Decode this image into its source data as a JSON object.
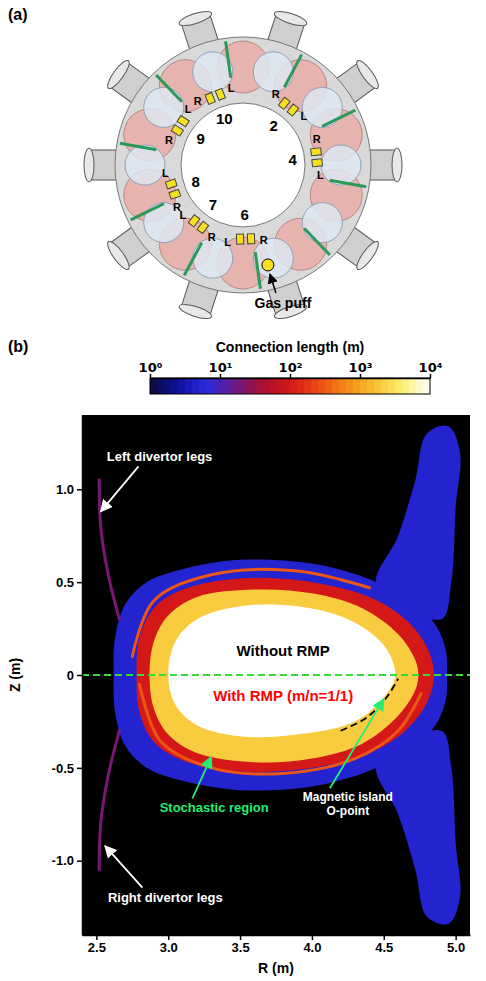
{
  "panel_a": {
    "label": "(a)",
    "sections": [
      {
        "number": "10",
        "left": "L",
        "right": "R"
      },
      {
        "number": "2",
        "left": "L",
        "right": "R"
      },
      {
        "number": "4",
        "left": "L",
        "right": "R"
      },
      {
        "number": "6",
        "left": "L",
        "right": "R"
      },
      {
        "number": "7",
        "left": "L",
        "right": "R"
      },
      {
        "number": "8",
        "left": "L",
        "right": "R"
      },
      {
        "number": "9",
        "left": "L",
        "right": "R"
      }
    ],
    "gas_puff": "Gas puff"
  },
  "chart_data": {
    "type": "contour",
    "label": "(b)",
    "xlabel": "R (m)",
    "ylabel": "Z (m)",
    "xlim": [
      2.4,
      5.1
    ],
    "ylim": [
      -1.4,
      1.4
    ],
    "xticks": [
      2.5,
      {
        "value": 3,
        "label": "3.0"
      },
      3.5,
      {
        "value": 4,
        "label": "4.0"
      },
      4.5,
      {
        "value": 5,
        "label": "5.0"
      }
    ],
    "yticks": [
      {
        "value": -1,
        "label": "-1.0"
      },
      -0.5,
      0,
      0.5,
      {
        "value": 1,
        "label": "1.0"
      }
    ],
    "colorbar": {
      "title": "Connection length (m)",
      "log": true,
      "range": [
        1,
        10000
      ],
      "ticks": [
        {
          "value": 1,
          "label": "10⁰"
        },
        {
          "value": 10,
          "label": "10¹"
        },
        {
          "value": 100,
          "label": "10²"
        },
        {
          "value": 1000,
          "label": "10³"
        },
        {
          "value": 10000,
          "label": "10⁴"
        }
      ]
    },
    "series": [
      {
        "type": "area",
        "connection_length": 5,
        "R": [
          2.62,
          2.63,
          2.7,
          2.85,
          3.1,
          3.5,
          4.0,
          4.35,
          4.55,
          4.72,
          4.86,
          4.93,
          4.94,
          4.93,
          4.86,
          4.72,
          4.55,
          4.35,
          4.0,
          3.5,
          3.1,
          2.85,
          2.7,
          2.63
        ],
        "Z": [
          0,
          0.2,
          0.38,
          0.5,
          0.57,
          0.62,
          0.6,
          0.53,
          0.46,
          0.38,
          0.27,
          0.14,
          0,
          -0.14,
          -0.27,
          -0.38,
          -0.46,
          -0.53,
          -0.6,
          -0.62,
          -0.57,
          -0.5,
          -0.38,
          -0.2
        ]
      },
      {
        "type": "area",
        "connection_length": 5,
        "R": [
          4.45,
          4.6,
          4.72,
          4.8,
          4.95,
          5.03,
          5.0,
          4.97,
          4.9
        ],
        "Z": [
          0.48,
          0.75,
          1.05,
          1.3,
          1.34,
          1.2,
          0.9,
          0.5,
          0.3
        ]
      },
      {
        "type": "area",
        "connection_length": 5,
        "R": [
          4.45,
          4.6,
          4.72,
          4.8,
          4.95,
          5.03,
          5.0,
          4.97,
          4.9
        ],
        "Z": [
          -0.48,
          -0.75,
          -1.05,
          -1.3,
          -1.34,
          -1.2,
          -0.9,
          -0.5,
          -0.3
        ]
      },
      {
        "type": "line",
        "connection_length": 20,
        "R": [
          2.66,
          2.58,
          2.53,
          2.52
        ],
        "Z": [
          0.3,
          0.55,
          0.8,
          1.05
        ]
      },
      {
        "type": "line",
        "connection_length": 20,
        "R": [
          2.66,
          2.58,
          2.53,
          2.52
        ],
        "Z": [
          -0.3,
          -0.55,
          -0.8,
          -1.05
        ]
      },
      {
        "type": "area",
        "connection_length": 100,
        "R": [
          2.78,
          2.8,
          2.9,
          3.1,
          3.5,
          4.0,
          4.4,
          4.65,
          4.8,
          4.85,
          4.8,
          4.65,
          4.4,
          4.0,
          3.5,
          3.1,
          2.9,
          2.8
        ],
        "Z": [
          0,
          0.2,
          0.36,
          0.46,
          0.52,
          0.5,
          0.42,
          0.3,
          0.15,
          0,
          -0.15,
          -0.3,
          -0.42,
          -0.5,
          -0.52,
          -0.46,
          -0.36,
          -0.2
        ]
      },
      {
        "type": "area",
        "connection_length": 2000,
        "R": [
          2.87,
          2.9,
          3.0,
          3.2,
          3.6,
          4.0,
          4.35,
          4.6,
          4.72,
          4.74,
          4.72,
          4.6,
          4.35,
          4.0,
          3.6,
          3.2,
          3.0,
          2.9
        ],
        "Z": [
          0,
          0.18,
          0.32,
          0.42,
          0.46,
          0.44,
          0.36,
          0.22,
          0.08,
          0,
          -0.08,
          -0.22,
          -0.37,
          -0.45,
          -0.47,
          -0.42,
          -0.32,
          -0.18
        ]
      },
      {
        "type": "area",
        "connection_length": 10000,
        "R": [
          3.0,
          3.05,
          3.2,
          3.5,
          3.9,
          4.25,
          4.5,
          4.58,
          4.5,
          4.3,
          3.9,
          3.5,
          3.2,
          3.05
        ],
        "Z": [
          0,
          0.18,
          0.3,
          0.37,
          0.37,
          0.3,
          0.16,
          0,
          -0.12,
          -0.25,
          -0.32,
          -0.33,
          -0.27,
          -0.16
        ]
      },
      {
        "type": "line",
        "connection_length": 300,
        "R": [
          2.8,
          2.95,
          3.3,
          3.8,
          4.3,
          4.6,
          4.76
        ],
        "Z": [
          -0.05,
          -0.36,
          -0.5,
          -0.53,
          -0.45,
          -0.3,
          -0.1
        ]
      },
      {
        "type": "line",
        "connection_length": 300,
        "R": [
          2.75,
          2.9,
          3.3,
          3.9,
          4.4
        ],
        "Z": [
          0.1,
          0.4,
          0.54,
          0.56,
          0.47
        ]
      }
    ],
    "reference_line": {
      "Z": 0,
      "color": "#33dd33",
      "line_style": "dashed"
    },
    "island_curve": {
      "R": [
        4.2,
        4.38,
        4.52,
        4.6
      ],
      "Z": [
        -0.3,
        -0.23,
        -0.12,
        -0.02
      ],
      "color": "#000000",
      "line_style": "dashed"
    },
    "annotations": [
      {
        "text": "Left divertor legs",
        "color": "#ffffff",
        "R": 2.94,
        "Z": 1.15,
        "arrow_R": 2.53,
        "arrow_Z": 0.88,
        "arrow_color": "#ffffff"
      },
      {
        "text": "Right divertor legs",
        "color": "#ffffff",
        "R": 2.98,
        "Z": -1.22,
        "arrow_R": 2.56,
        "arrow_Z": -0.92,
        "arrow_color": "#ffffff"
      },
      {
        "text": "Without RMP",
        "color": "#000000",
        "R": 3.8,
        "Z": 0.1
      },
      {
        "text": "With RMP (m/n=1/1)",
        "color": "#ff0000",
        "R": 3.8,
        "Z": -0.14
      },
      {
        "text": "Stochastic region",
        "color": "#22ee77",
        "R": 3.32,
        "Z": -0.74,
        "arrow_R": 3.3,
        "arrow_Z": -0.44,
        "arrow_color": "#22ee77"
      },
      {
        "text": "Magnetic island O-point",
        "color": "#ffffff",
        "R": 4.25,
        "Z": -0.68,
        "arrow_R": 4.5,
        "arrow_Z": -0.13,
        "arrow_color": "#22ee77"
      }
    ]
  }
}
